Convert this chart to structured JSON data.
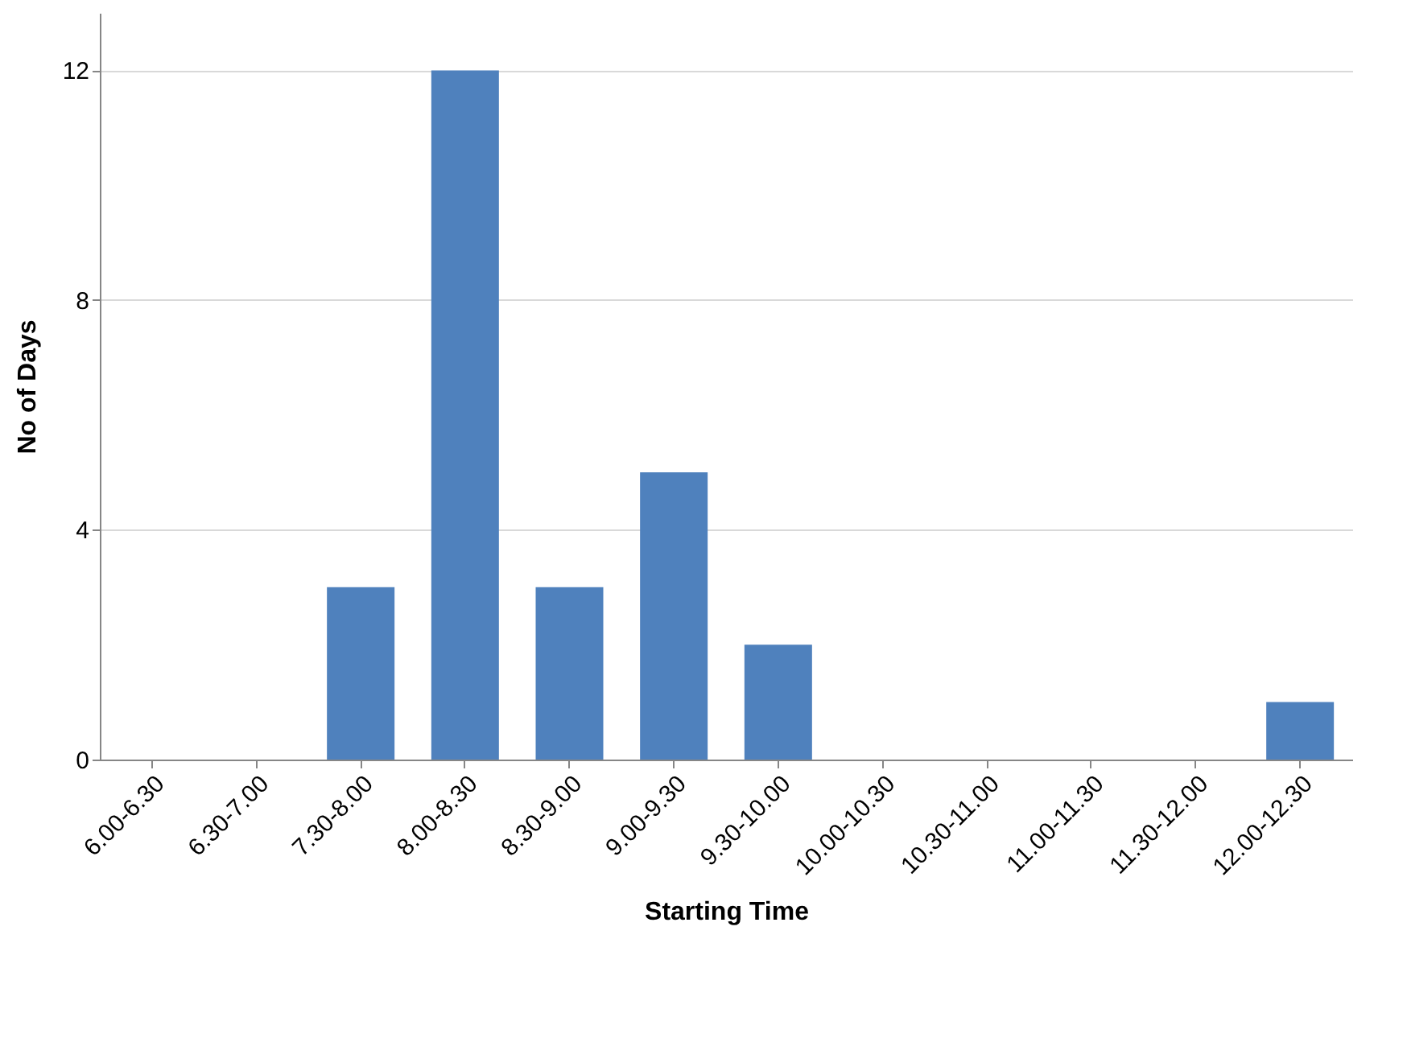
{
  "chart_data": {
    "type": "bar",
    "xlabel": "Starting Time",
    "ylabel": "No of Days",
    "categories": [
      "6.00-6.30",
      "6.30-7.00",
      "7.30-8.00",
      "8.00-8.30",
      "8.30-9.00",
      "9.00-9.30",
      "9.30-10.00",
      "10.00-10.30",
      "10.30-11.00",
      "11.00-11.30",
      "11.30-12.00",
      "12.00-12.30"
    ],
    "values": [
      0,
      0,
      3,
      12,
      3,
      5,
      2,
      0,
      0,
      0,
      0,
      1
    ],
    "color": "#4f81bd",
    "ylim": [
      0,
      13
    ],
    "yticks": [
      0,
      4,
      8,
      12
    ],
    "grid": "y"
  }
}
